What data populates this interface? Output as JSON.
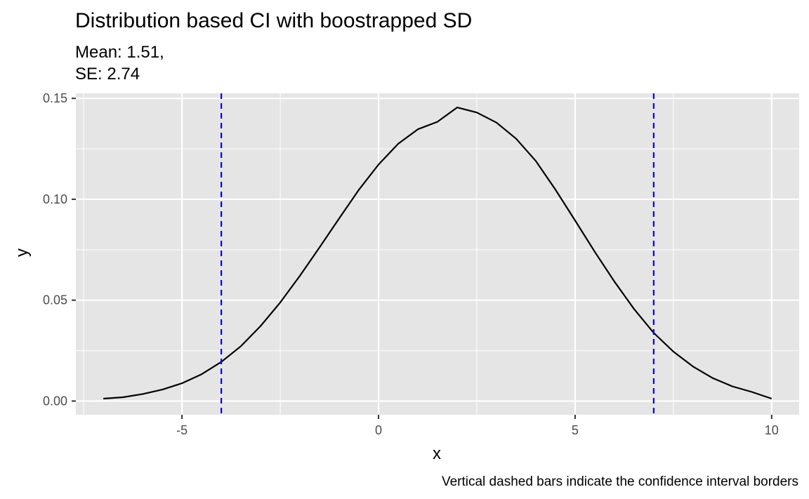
{
  "chart_data": {
    "type": "line",
    "title": "Distribution based CI with boostrapped SD",
    "subtitle_lines": [
      "Mean: 1.51,",
      "SE: 2.74"
    ],
    "xlabel": "x",
    "ylabel": "y",
    "caption": "Vertical dashed bars indicate the confidence interval borders",
    "xlim": [
      -7.7,
      10.7
    ],
    "ylim": [
      -0.0068,
      0.1525
    ],
    "x_ticks": [
      -5,
      0,
      5,
      10
    ],
    "x_tick_labels": [
      "-5",
      "0",
      "5",
      "10"
    ],
    "x_minor_ticks": [
      -7.5,
      -2.5,
      2.5,
      7.5
    ],
    "y_ticks": [
      0,
      0.05,
      0.1,
      0.15
    ],
    "y_tick_labels": [
      "0.00",
      "0.05",
      "0.10",
      "0.15"
    ],
    "y_minor_ticks": [
      0.025,
      0.075,
      0.125
    ],
    "grid": true,
    "series": [
      {
        "x": [
          -7,
          -6.5,
          -6,
          -5.5,
          -5,
          -4.5,
          -4,
          -3.5,
          -3,
          -2.5,
          -2,
          -1.5,
          -1,
          -0.5,
          0,
          0.5,
          1,
          1.5,
          2,
          2.5,
          3,
          3.5,
          4,
          4.5,
          5,
          5.5,
          6,
          6.5,
          7,
          7.5,
          8,
          8.5,
          9,
          9.5,
          10
        ],
        "values": [
          0.0012,
          0.0019,
          0.0035,
          0.0057,
          0.0088,
          0.0133,
          0.0194,
          0.0272,
          0.0372,
          0.0489,
          0.0621,
          0.0762,
          0.0906,
          0.1047,
          0.1172,
          0.1275,
          0.1347,
          0.1384,
          0.1455,
          0.143,
          0.138,
          0.13,
          0.119,
          0.1048,
          0.0895,
          0.074,
          0.0592,
          0.0456,
          0.0338,
          0.0245,
          0.0171,
          0.0114,
          0.0073,
          0.0045,
          0.0012
        ],
        "color": "#000000"
      }
    ],
    "ci_lines": [
      -4.0,
      7.0
    ],
    "ci_color": "#0000ff",
    "panel_color": "#e5e5e5",
    "grid_color": "#ffffff"
  }
}
